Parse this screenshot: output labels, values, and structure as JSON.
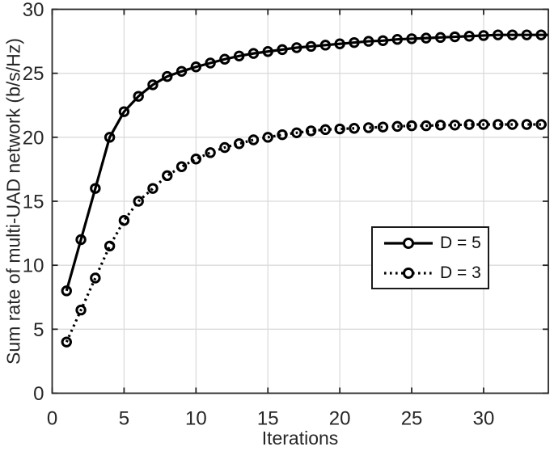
{
  "figure": {
    "background": "#ffffff"
  },
  "chart_data": {
    "type": "line",
    "title": "",
    "xlabel": "Iterations",
    "ylabel": "Sum rate of multi-UAD network (b/s/Hz)",
    "xlim": [
      0,
      34.5
    ],
    "ylim": [
      0,
      30
    ],
    "x_ticks": [
      0,
      5,
      10,
      15,
      20,
      25,
      30
    ],
    "y_ticks": [
      0,
      5,
      10,
      15,
      20,
      25,
      30
    ],
    "grid": true,
    "legend_position": "right-middle",
    "x": [
      1,
      2,
      3,
      4,
      5,
      6,
      7,
      8,
      9,
      10,
      11,
      12,
      13,
      14,
      15,
      16,
      17,
      18,
      19,
      20,
      21,
      22,
      23,
      24,
      25,
      26,
      27,
      28,
      29,
      30,
      31,
      32,
      33,
      34
    ],
    "series": [
      {
        "name": "D = 5",
        "line_style": "solid",
        "marker": "circle",
        "color": "#000000",
        "values": [
          8,
          12,
          16,
          20,
          22,
          23.2,
          24.1,
          24.75,
          25.15,
          25.5,
          25.8,
          26.1,
          26.35,
          26.55,
          26.7,
          26.85,
          27.0,
          27.1,
          27.2,
          27.3,
          27.4,
          27.5,
          27.55,
          27.65,
          27.7,
          27.75,
          27.8,
          27.85,
          27.9,
          27.95,
          28.0,
          28.0,
          28.0,
          28.0
        ]
      },
      {
        "name": "D = 3",
        "line_style": "dotted",
        "marker": "circle",
        "color": "#000000",
        "values": [
          4,
          6.5,
          9,
          11.5,
          13.5,
          15,
          16,
          17,
          17.7,
          18.3,
          18.8,
          19.2,
          19.5,
          19.8,
          20.0,
          20.2,
          20.35,
          20.5,
          20.6,
          20.65,
          20.7,
          20.75,
          20.8,
          20.85,
          20.9,
          20.9,
          20.95,
          20.95,
          21.0,
          21.0,
          21.0,
          21.0,
          21.0,
          21.0
        ]
      }
    ],
    "colors": {
      "axis": "#262626",
      "grid": "#dbdbdb",
      "line": "#000000",
      "tick_label": "#262626",
      "background": "#ffffff"
    }
  }
}
